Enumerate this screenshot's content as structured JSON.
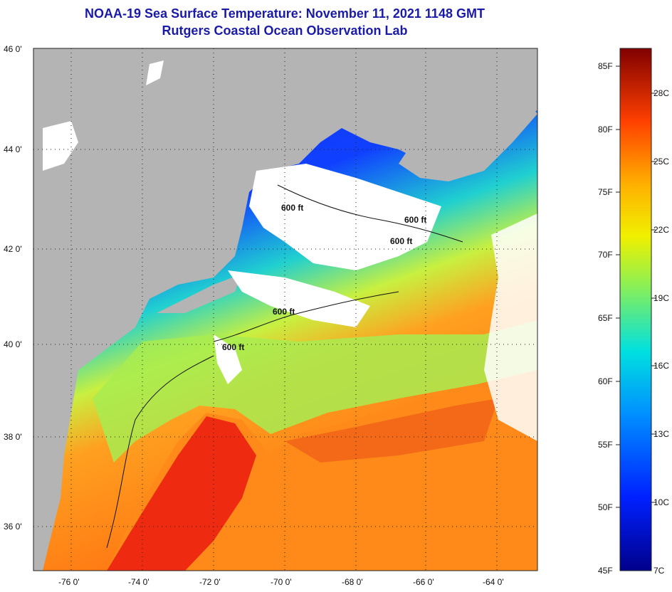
{
  "title": "NOAA-19 Sea Surface Temperature:  November 11, 2021 1148 GMT",
  "subtitle": "Rutgers Coastal Ocean Observation Lab",
  "map": {
    "lat_labels": [
      "46 0'",
      "44 0'",
      "42 0'",
      "40 0'",
      "38 0'",
      "36 0'"
    ],
    "lon_labels": [
      "-76 0'",
      "-74 0'",
      "-72 0'",
      "-70 0'",
      "-68 0'",
      "-66 0'",
      "-64 0'"
    ],
    "contour_labels": [
      "600 ft",
      "600 ft",
      "600 ft",
      "600 ft",
      "600 ft"
    ],
    "colors": {
      "land": "#b4b4b4",
      "cloud": "#ffffff",
      "cold": "#1030e0",
      "mid": "#20d0d0",
      "warm": "#ff9020",
      "hot": "#e82010"
    }
  },
  "colorbar": {
    "fahrenheit": [
      "85F",
      "80F",
      "75F",
      "70F",
      "65F",
      "60F",
      "55F",
      "50F",
      "45F"
    ],
    "celsius": [
      "28C",
      "25C",
      "22C",
      "19C",
      "16C",
      "13C",
      "10C",
      "7C"
    ],
    "range_f": [
      45,
      87
    ]
  }
}
